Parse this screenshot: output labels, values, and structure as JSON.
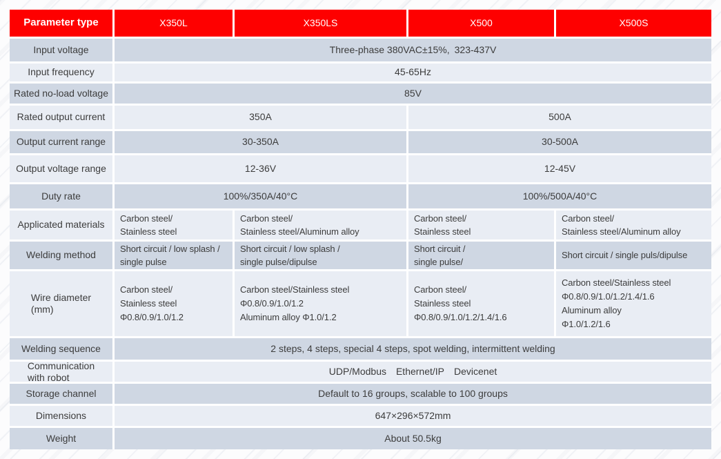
{
  "colors": {
    "header_bg": "#fe0000",
    "header_text": "#ffffff",
    "row_dark": "#cfd7e3",
    "row_light": "#e9edf4",
    "body_text": "#3c3c3c",
    "grid_gap": "#ffffff"
  },
  "header": {
    "parameter_col": "Parameter type",
    "models": [
      "X350L",
      "X350LS",
      "X500",
      "X500S"
    ]
  },
  "rows": {
    "input_voltage": {
      "label": "Input voltage",
      "value": "Three-phase 380VAC±15%, 323-437V"
    },
    "input_frequency": {
      "label": "Input frequency",
      "value": "45-65Hz"
    },
    "rated_no_load_voltage": {
      "label": "Rated no-load voltage",
      "value": "85V"
    },
    "rated_output_current": {
      "label": "Rated output current",
      "x350": "350A",
      "x500": "500A"
    },
    "output_current_range": {
      "label": "Output current range",
      "x350": "30-350A",
      "x500": "30-500A"
    },
    "output_voltage_range": {
      "label": "Output voltage range",
      "x350": "12-36V",
      "x500": "12-45V"
    },
    "duty_rate": {
      "label": "Duty rate",
      "x350": "100%/350A/40°C",
      "x500": "100%/500A/40°C"
    },
    "applicated_materials": {
      "label": "Applicated materials",
      "x350l": [
        "Carbon steel/",
        "Stainless steel"
      ],
      "x350ls": [
        "Carbon steel/",
        "Stainless steel/Aluminum alloy"
      ],
      "x500": [
        "Carbon steel/",
        "Stainless steel"
      ],
      "x500s": [
        "Carbon steel/",
        "Stainless steel/Aluminum alloy"
      ]
    },
    "welding_method": {
      "label": "Welding method",
      "x350l": [
        "Short circuit / low splash /",
        "single pulse"
      ],
      "x350ls": [
        "Short circuit / low splash /",
        "single pulse/dipulse"
      ],
      "x500": [
        "Short circuit /",
        "single pulse/"
      ],
      "x500s": [
        "Short circuit / single puls/dipulse"
      ]
    },
    "wire_diameter": {
      "label": [
        "Wire diameter",
        "(mm)"
      ],
      "x350l": [
        "Carbon steel/",
        "Stainless steel",
        "Φ0.8/0.9/1.0/1.2"
      ],
      "x350ls": [
        "Carbon steel/Stainless steel",
        "Φ0.8/0.9/1.0/1.2",
        "Aluminum alloy Φ1.0/1.2"
      ],
      "x500": [
        "Carbon steel/",
        "Stainless steel",
        "Φ0.8/0.9/1.0/1.2/1.4/1.6"
      ],
      "x500s": [
        "Carbon steel/Stainless steel",
        "Φ0.8/0.9/1.0/1.2/1.4/1.6",
        "Aluminum alloy",
        "Φ1.0/1.2/1.6"
      ]
    },
    "welding_sequence": {
      "label": "Welding sequence",
      "value": "2 steps, 4 steps, special 4 steps, spot welding, intermittent welding"
    },
    "communication_with_robot": {
      "label": [
        "Communication",
        "with robot"
      ],
      "value": "UDP/Modbus Ethernet/IP Devicenet"
    },
    "storage_channel": {
      "label": "Storage channel",
      "value": "Default to 16 groups, scalable to 100 groups"
    },
    "dimensions": {
      "label": "Dimensions",
      "value": "647×296×572mm"
    },
    "weight": {
      "label": "Weight",
      "value": "About 50.5kg"
    }
  }
}
